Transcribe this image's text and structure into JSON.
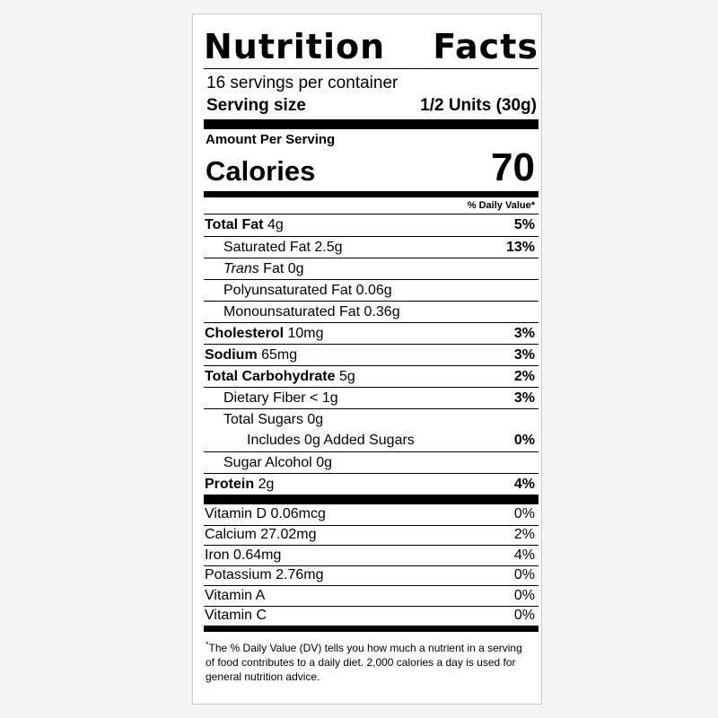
{
  "title": {
    "word1": "Nutrition",
    "word2": "Facts"
  },
  "servings_per_container": "16 servings per container",
  "serving_size": {
    "label": "Serving size",
    "value": "1/2 Units (30g)"
  },
  "amount_per_serving": "Amount Per Serving",
  "calories": {
    "label": "Calories",
    "value": "70"
  },
  "daily_value_header": "% Daily Value*",
  "nutrients": [
    {
      "name": "Total Fat",
      "amount": "4g",
      "dv": "5%"
    },
    {
      "name": "Saturated Fat",
      "amount": "2.5g",
      "dv": "13%"
    },
    {
      "name_italic": "Trans",
      "name": "Fat",
      "amount": "0g",
      "dv": ""
    },
    {
      "name": "Polyunsaturated Fat",
      "amount": "0.06g",
      "dv": ""
    },
    {
      "name": "Monounsaturated Fat",
      "amount": "0.36g",
      "dv": ""
    },
    {
      "name": "Cholesterol",
      "amount": "10mg",
      "dv": "3%"
    },
    {
      "name": "Sodium",
      "amount": "65mg",
      "dv": "3%"
    },
    {
      "name": "Total Carbohydrate",
      "amount": "5g",
      "dv": "2%"
    },
    {
      "name": "Dietary Fiber",
      "amount": "< 1g",
      "dv": "3%"
    },
    {
      "name": "Total Sugars",
      "amount": "0g",
      "dv": ""
    },
    {
      "name": "Includes 0g Added Sugars",
      "amount": "",
      "dv": "0%"
    },
    {
      "name": "Sugar Alcohol",
      "amount": "0g",
      "dv": ""
    },
    {
      "name": "Protein",
      "amount": "2g",
      "dv": "4%"
    }
  ],
  "vitamins": [
    {
      "name": "Vitamin D",
      "amount": "0.06mcg",
      "dv": "0%"
    },
    {
      "name": "Calcium",
      "amount": "27.02mg",
      "dv": "2%"
    },
    {
      "name": "Iron",
      "amount": "0.64mg",
      "dv": "4%"
    },
    {
      "name": "Potassium",
      "amount": "2.76mg",
      "dv": "0%"
    },
    {
      "name": "Vitamin A",
      "amount": "",
      "dv": "0%"
    },
    {
      "name": "Vitamin C",
      "amount": "",
      "dv": "0%"
    }
  ],
  "footnote": {
    "star": "*",
    "text": "The % Daily Value (DV) tells you how much a nutrient in a serving of food contributes to a daily diet. 2,000 calories a day is used for general nutrition advice."
  }
}
